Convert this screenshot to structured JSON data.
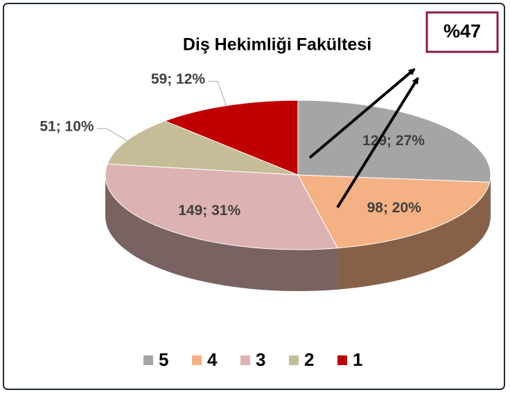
{
  "chart_data": {
    "type": "pie3d",
    "title": "Diş Hekimliği Fakültesi",
    "categories": [
      "5",
      "4",
      "3",
      "2",
      "1"
    ],
    "values": [
      129,
      98,
      149,
      51,
      59
    ],
    "value_labels": [
      "129; 27%",
      "98; 20%",
      "149; 31%",
      "51; 10%",
      "59; 12%"
    ],
    "colors": [
      "#a5a5a5",
      "#f4b183",
      "#dcb2b2",
      "#c4bd97",
      "#c00000"
    ],
    "annotation": "%47",
    "legend": "bottom"
  }
}
